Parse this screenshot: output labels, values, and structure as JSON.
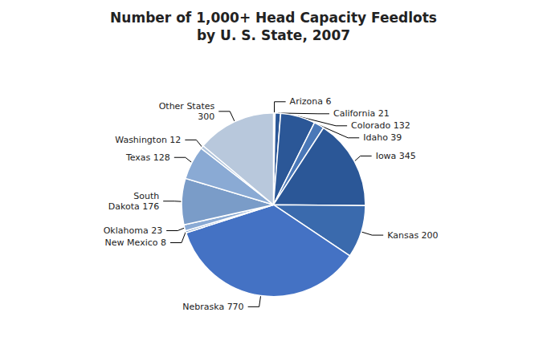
{
  "chart_data": {
    "type": "pie",
    "title": "Number of 1,000+ Head Capacity Feedlots\nby U. S. State, 2007",
    "categories": [
      "Arizona 6",
      "California 21",
      "Colorado 132",
      "Idaho 39",
      "Iowa 345",
      "Kansas 200",
      "Nebraska 770",
      "New Mexico 8",
      "Oklahoma 23",
      "South\nDakota 176",
      "Texas 128",
      "Washington 12",
      "Other States\n300"
    ],
    "values": [
      6,
      21,
      132,
      39,
      345,
      200,
      770,
      8,
      23,
      176,
      128,
      12,
      300
    ],
    "colors": [
      "#c5cfe0",
      "#2b5797",
      "#2b5797",
      "#4a78b8",
      "#2b5797",
      "#3a6aad",
      "#4472c4",
      "#7a9cc8",
      "#8aaad4",
      "#7a9cc8",
      "#8aaad4",
      "#b0c4dc",
      "#b8c8dc"
    ]
  }
}
